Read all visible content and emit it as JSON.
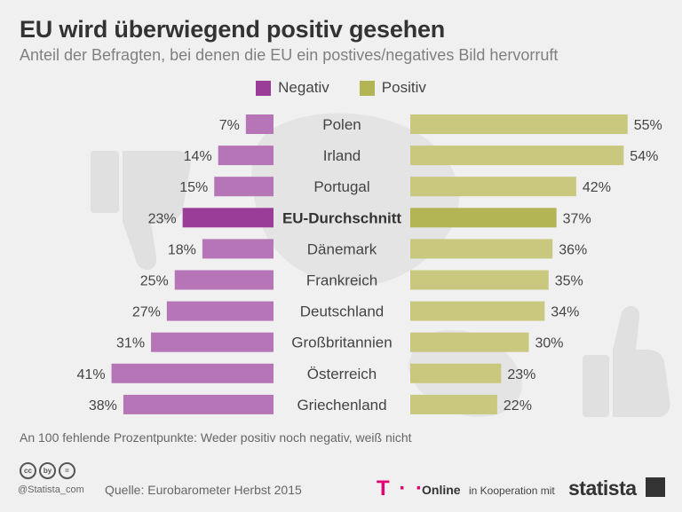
{
  "title": "EU wird überwiegend positiv gesehen",
  "subtitle": "Anteil der Befragten, bei denen die EU ein postives/negatives Bild hervorruft",
  "footnote": "An 100 fehlende Prozentpunkte: Weder positiv noch negativ, weiß nicht",
  "source": "Quelle: Eurobarometer Herbst 2015",
  "handle": "@Statista_com",
  "cc_icons": [
    "cc",
    "by",
    "="
  ],
  "partner": {
    "logo": "T · ·",
    "name": "Online",
    "cooperation": "in Kooperation mit"
  },
  "brand": "statista",
  "colors": {
    "negativ": "#b575b7",
    "negativ_highlight": "#9a3d98",
    "positiv": "#c9c87e",
    "positiv_highlight": "#b3b453"
  },
  "chart_data": {
    "type": "bar",
    "orientation": "horizontal-diverging",
    "categories": [
      "Polen",
      "Irland",
      "Portugal",
      "EU-Durchschnitt",
      "Dänemark",
      "Frankreich",
      "Deutschland",
      "Großbritannien",
      "Österreich",
      "Griechenland"
    ],
    "highlight": "EU-Durchschnitt",
    "series": [
      {
        "name": "Negativ",
        "values": [
          7,
          14,
          15,
          23,
          18,
          25,
          27,
          31,
          41,
          38
        ]
      },
      {
        "name": "Positiv",
        "values": [
          55,
          54,
          42,
          37,
          36,
          35,
          34,
          30,
          23,
          22
        ]
      }
    ],
    "unit": "%",
    "legend": "top-center",
    "grid": false
  }
}
